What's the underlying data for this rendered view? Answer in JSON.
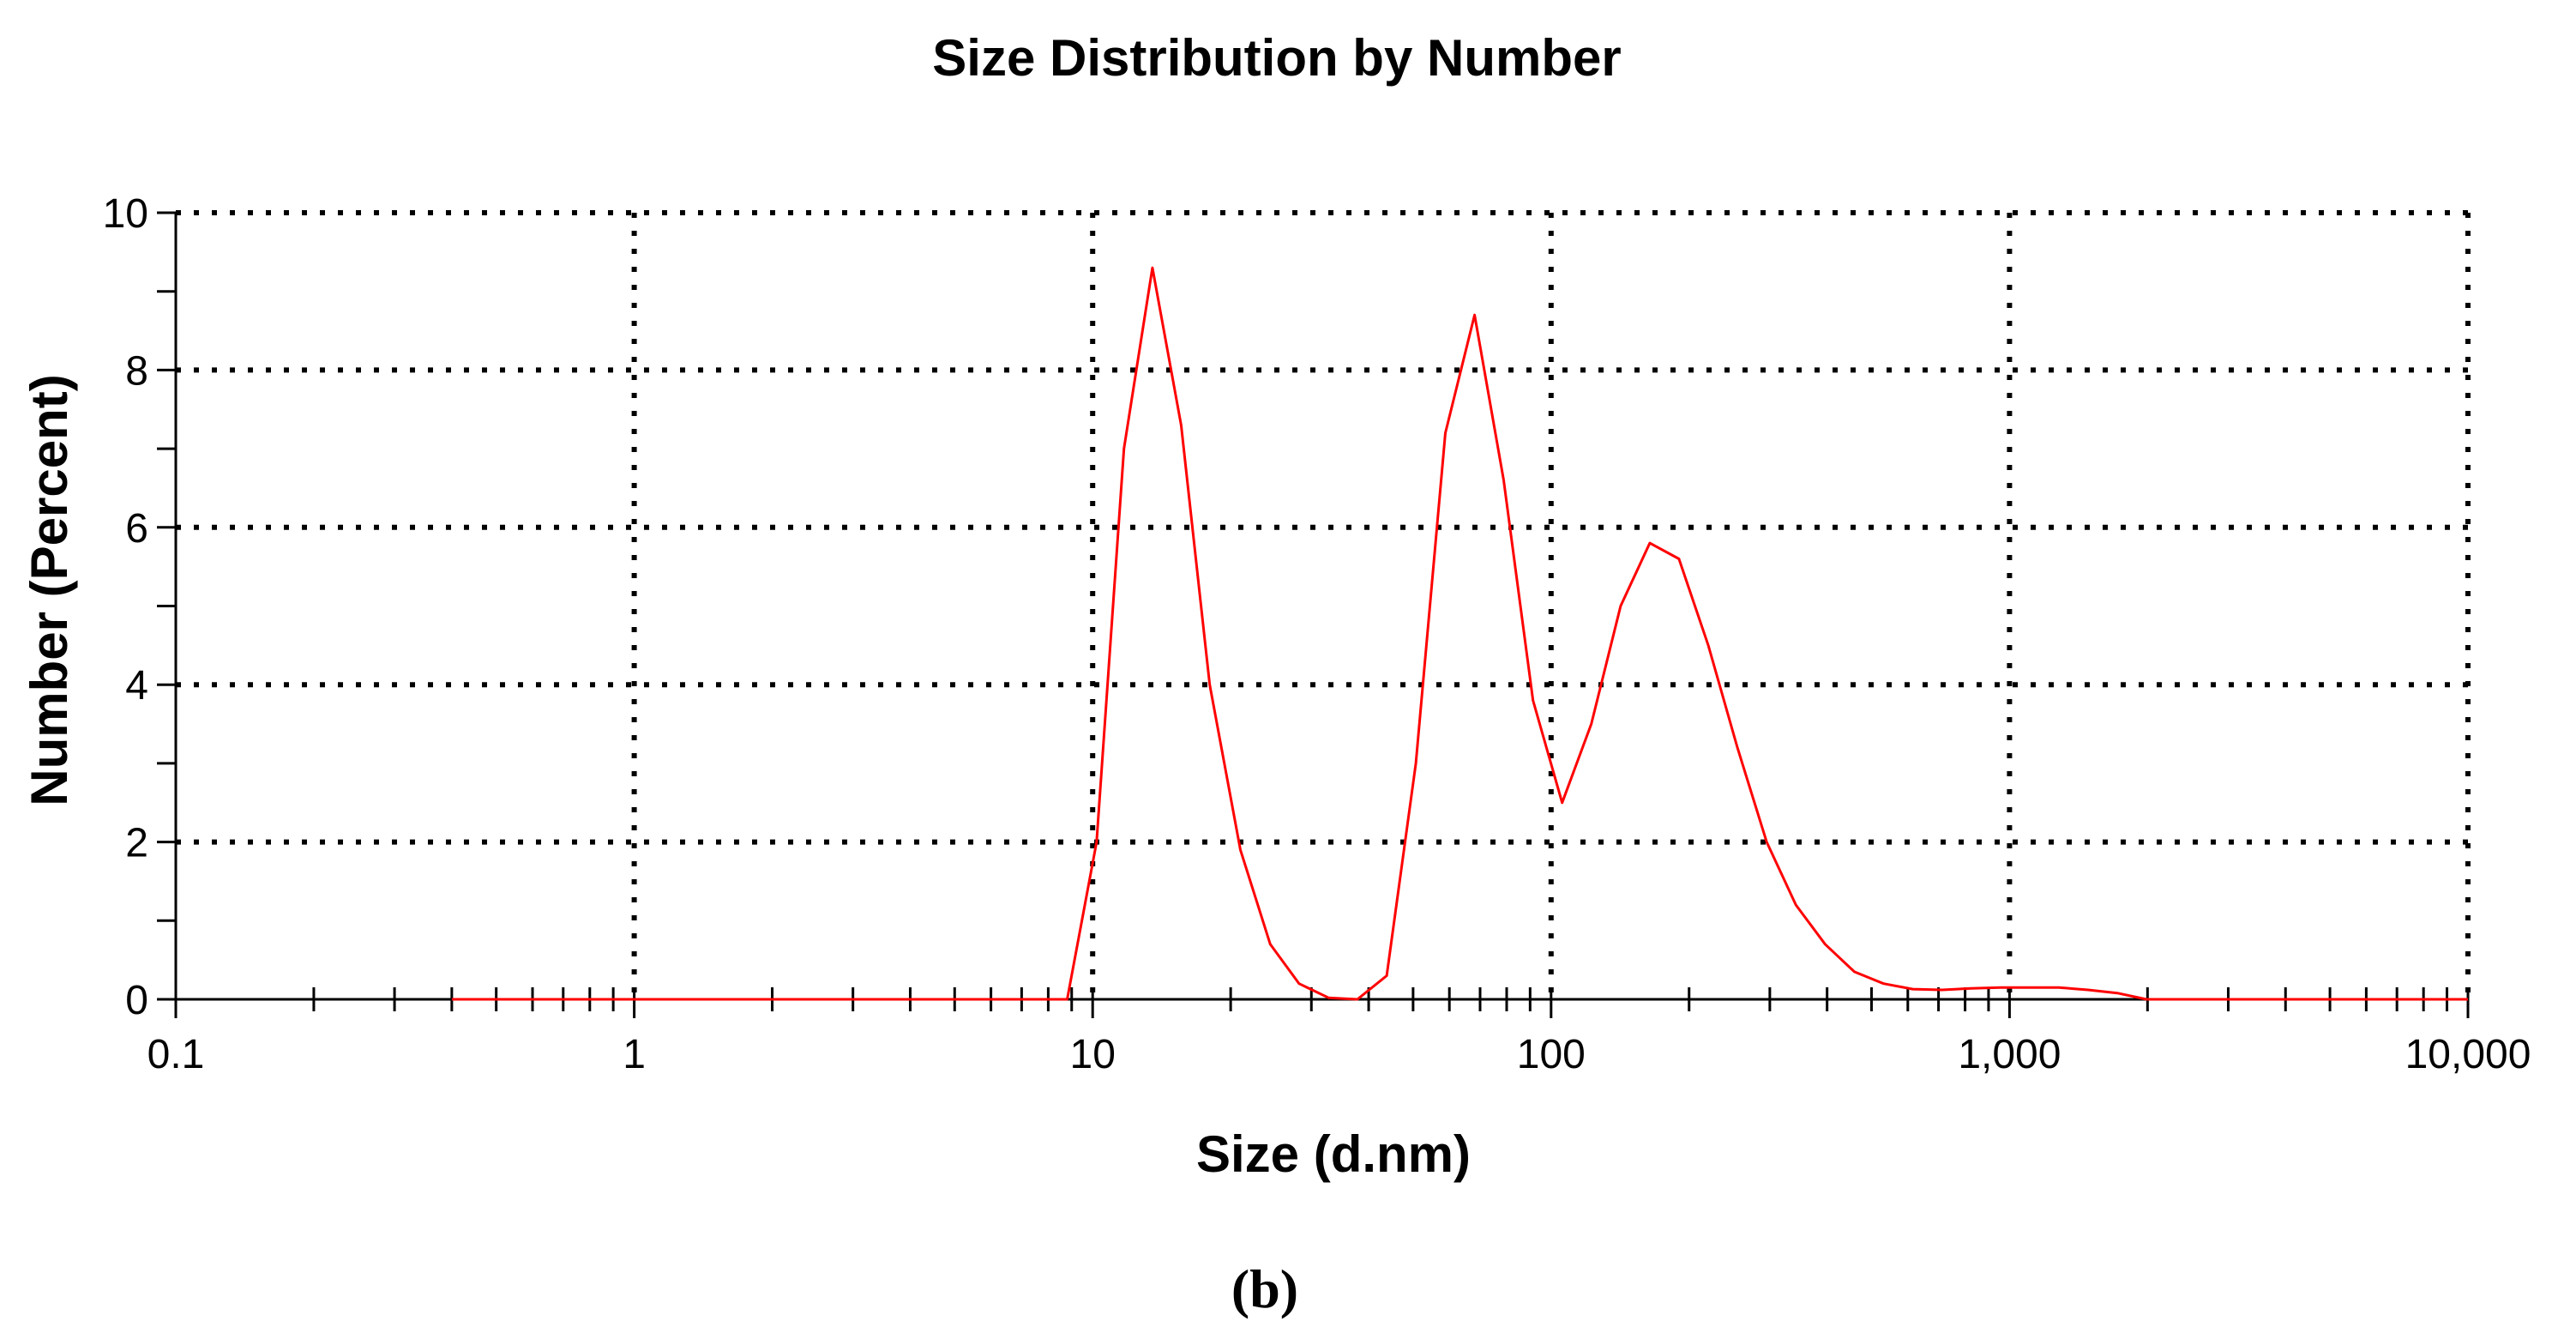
{
  "chart_data": {
    "type": "line",
    "title": "Size Distribution by Number",
    "xlabel": "Size (d.nm)",
    "ylabel": "Number (Percent)",
    "x_scale": "log",
    "xlim": [
      0.1,
      10000
    ],
    "ylim": [
      0,
      10
    ],
    "x_ticks": [
      0.1,
      1,
      10,
      100,
      1000,
      10000
    ],
    "x_tick_labels": [
      "0.1",
      "1",
      "10",
      "100",
      "1,000",
      "10,000"
    ],
    "y_ticks": [
      0,
      2,
      4,
      6,
      8,
      10
    ],
    "y_tick_labels": [
      "0",
      "2",
      "4",
      "6",
      "8",
      "10"
    ],
    "grid": true,
    "legend": "none",
    "line_color": "#ff0000",
    "series": [
      {
        "x": [
          0.4,
          0.5,
          0.7,
          1,
          2,
          3,
          5,
          7,
          8.8,
          10.2,
          11.7,
          13.5,
          15.6,
          18,
          21,
          24.4,
          28.2,
          32.7,
          37.8,
          43.8,
          50.7,
          58.8,
          68.1,
          78.8,
          91.3,
          105.7,
          122.4,
          141.8,
          164.2,
          190.1,
          220.2,
          255,
          295.3,
          342,
          396.1,
          458.7,
          531.2,
          615.1,
          712.4,
          825,
          955.4,
          1106,
          1281,
          1484,
          1718,
          1990,
          2305,
          3000,
          5000,
          7000,
          10000
        ],
        "y": [
          0,
          0,
          0,
          0,
          0,
          0,
          0,
          0,
          0,
          2.0,
          7.0,
          9.3,
          7.3,
          4.0,
          1.9,
          0.7,
          0.2,
          0.02,
          0,
          0.3,
          3.0,
          7.2,
          8.7,
          6.6,
          3.8,
          2.5,
          3.5,
          5.0,
          5.8,
          5.6,
          4.5,
          3.2,
          2.0,
          1.2,
          0.7,
          0.35,
          0.2,
          0.13,
          0.12,
          0.14,
          0.15,
          0.15,
          0.15,
          0.12,
          0.08,
          0,
          0,
          0,
          0,
          0,
          0
        ]
      }
    ]
  },
  "panel_label": "(b)"
}
